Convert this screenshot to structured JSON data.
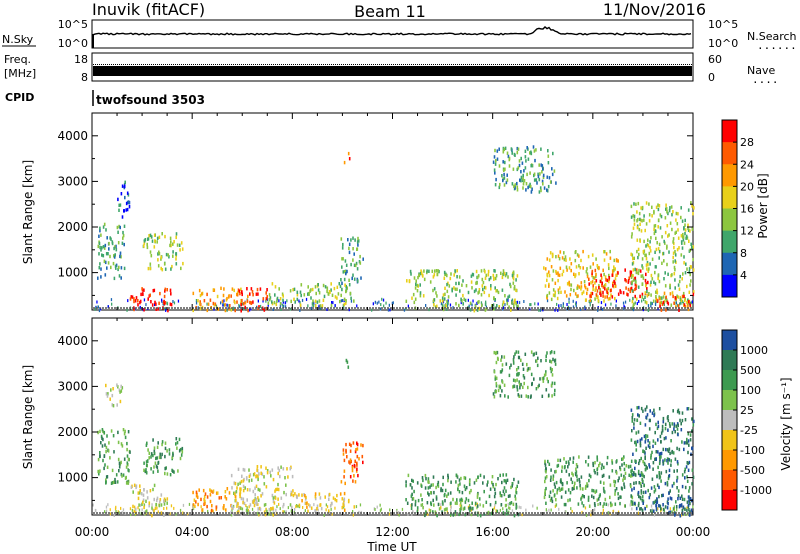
{
  "header": {
    "station": "Inuvik (fitACF)",
    "beam": "Beam 11",
    "date": "11/Nov/2016"
  },
  "panels": {
    "nsky": {
      "left_label": "N.Sky",
      "left_ticks": [
        "10^5",
        "10^0"
      ],
      "right_ticks": [
        "10^5",
        "10^0"
      ],
      "right_label": "N.Search",
      "right_dots": "......"
    },
    "freq": {
      "left_label_1": "Freq.",
      "left_label_2": "[MHz]",
      "left_ticks": [
        "18",
        "8"
      ],
      "right_ticks": [
        "60",
        "0"
      ],
      "right_label": "Nave",
      "right_dots": "...."
    },
    "cpid": {
      "label": "CPID",
      "value": "twofsound 3503"
    }
  },
  "colorbars": {
    "power": {
      "label": "Power [dB]",
      "ticks": [
        "28",
        "24",
        "20",
        "16",
        "12",
        "8",
        "4"
      ],
      "colors": [
        "#ff0000",
        "#ff5a00",
        "#ff9900",
        "#e8d01a",
        "#8cc63f",
        "#3fa66b",
        "#1e66b3",
        "#0000ff"
      ]
    },
    "velocity": {
      "label": "Velocity [m s⁻¹]",
      "ticks": [
        "1000",
        "500",
        "100",
        "25",
        "-25",
        "-100",
        "-500",
        "-1000"
      ],
      "colors": [
        "#1d4fa0",
        "#2f7a55",
        "#3d9a50",
        "#7dc24b",
        "#bdbdbd",
        "#f0c419",
        "#ff9900",
        "#ff5a00",
        "#ff0000"
      ]
    }
  },
  "x_axis": {
    "label": "Time UT",
    "ticks": [
      "00:00",
      "04:00",
      "08:00",
      "12:00",
      "16:00",
      "20:00",
      "00:00"
    ]
  },
  "chart_data": [
    {
      "type": "heatmap",
      "title": "Power",
      "ylabel": "Slant Range [km]",
      "xlabel": "Time UT",
      "x_ticks": [
        "00:00",
        "04:00",
        "08:00",
        "12:00",
        "16:00",
        "20:00",
        "00:00"
      ],
      "x_range_hours": [
        0,
        24
      ],
      "y_ticks": [
        1000,
        2000,
        3000,
        4000
      ],
      "ylim": [
        180,
        4500
      ],
      "colorbar": "Power [dB]",
      "regions": [
        {
          "t": [
            0.2,
            1.3
          ],
          "r": [
            900,
            2100
          ],
          "level": 2
        },
        {
          "t": [
            1.0,
            1.5
          ],
          "r": [
            2200,
            3050
          ],
          "level": 1
        },
        {
          "t": [
            1.5,
            3.2
          ],
          "r": [
            200,
            700
          ],
          "level": 7
        },
        {
          "t": [
            2.0,
            3.6
          ],
          "r": [
            1100,
            1900
          ],
          "level": 3
        },
        {
          "t": [
            4.0,
            6.2
          ],
          "r": [
            200,
            700
          ],
          "level": 5
        },
        {
          "t": [
            5.8,
            7.0
          ],
          "r": [
            200,
            700
          ],
          "level": 7
        },
        {
          "t": [
            7.0,
            10.5
          ],
          "r": [
            300,
            800
          ],
          "level": 3
        },
        {
          "t": [
            9.9,
            10.8
          ],
          "r": [
            800,
            1800
          ],
          "level": 2
        },
        {
          "t": [
            10.0,
            10.3
          ],
          "r": [
            3450,
            3650
          ],
          "level": 6
        },
        {
          "t": [
            12.5,
            17.0
          ],
          "r": [
            200,
            1100
          ],
          "level": 3
        },
        {
          "t": [
            16.0,
            18.5
          ],
          "r": [
            2800,
            3800
          ],
          "level": 2
        },
        {
          "t": [
            18.0,
            21.0
          ],
          "r": [
            400,
            1500
          ],
          "level": 4
        },
        {
          "t": [
            19.8,
            22.2
          ],
          "r": [
            500,
            1100
          ],
          "level": 7
        },
        {
          "t": [
            21.5,
            24.0
          ],
          "r": [
            300,
            2600
          ],
          "level": 3
        },
        {
          "t": [
            22.5,
            24.0
          ],
          "r": [
            200,
            600
          ],
          "level": 6
        }
      ]
    },
    {
      "type": "heatmap",
      "title": "Velocity",
      "ylabel": "Slant Range [km]",
      "xlabel": "Time UT",
      "x_ticks": [
        "00:00",
        "04:00",
        "08:00",
        "12:00",
        "16:00",
        "20:00",
        "00:00"
      ],
      "x_range_hours": [
        0,
        24
      ],
      "y_ticks": [
        1000,
        2000,
        3000,
        4000
      ],
      "ylim": [
        180,
        4500
      ],
      "colorbar": "Velocity [m s⁻¹]",
      "regions": [
        {
          "t": [
            0.2,
            1.5
          ],
          "r": [
            900,
            2100
          ],
          "level": 6
        },
        {
          "t": [
            0.5,
            1.2
          ],
          "r": [
            2600,
            3100
          ],
          "level": 4
        },
        {
          "t": [
            1.5,
            3.0
          ],
          "r": [
            200,
            900
          ],
          "level": 4
        },
        {
          "t": [
            2.0,
            3.6
          ],
          "r": [
            1100,
            1900
          ],
          "level": 6
        },
        {
          "t": [
            4.0,
            6.0
          ],
          "r": [
            300,
            800
          ],
          "level": 2
        },
        {
          "t": [
            5.5,
            8.0
          ],
          "r": [
            200,
            1300
          ],
          "level": 4
        },
        {
          "t": [
            8.0,
            10.5
          ],
          "r": [
            300,
            700
          ],
          "level": 3
        },
        {
          "t": [
            9.9,
            10.8
          ],
          "r": [
            900,
            1800
          ],
          "level": 1
        },
        {
          "t": [
            10.0,
            10.3
          ],
          "r": [
            3450,
            3650
          ],
          "level": 6
        },
        {
          "t": [
            12.5,
            17.0
          ],
          "r": [
            200,
            1100
          ],
          "level": 6
        },
        {
          "t": [
            16.0,
            18.5
          ],
          "r": [
            2800,
            3800
          ],
          "level": 6
        },
        {
          "t": [
            18.0,
            22.0
          ],
          "r": [
            400,
            1500
          ],
          "level": 6
        },
        {
          "t": [
            21.5,
            24.0
          ],
          "r": [
            300,
            2600
          ],
          "level": 7
        },
        {
          "t": [
            22.5,
            24.0
          ],
          "r": [
            200,
            600
          ],
          "level": 8
        }
      ]
    }
  ]
}
